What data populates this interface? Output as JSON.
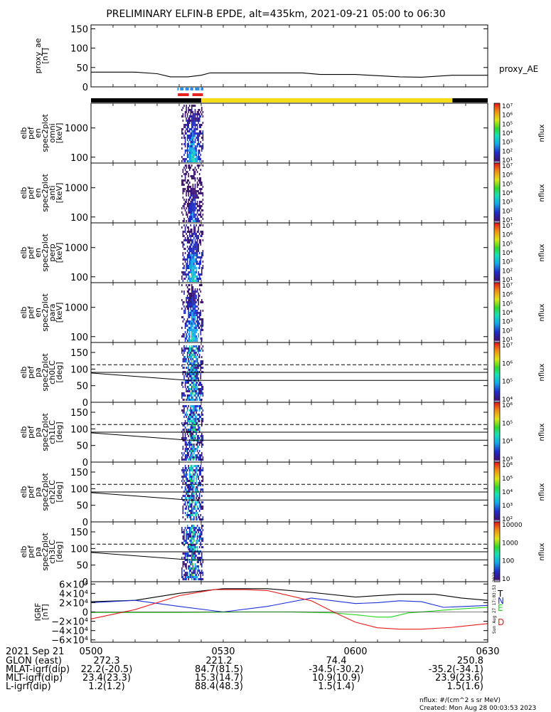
{
  "title": "PRELIMINARY ELFIN-B EPDE, alt=435km, 2021-09-21 05:00 to 06:30",
  "colors": {
    "axes": "#000000",
    "red_bar": "#e8231f",
    "blue_bar": "#2a8ce6",
    "yellow_bar": "#f5dc14",
    "trace_T": "#000000",
    "trace_N": "#1b2fd6",
    "trace_E": "#22d41a",
    "trace_D": "#e81c1c"
  },
  "chart_data": [
    {
      "type": "line",
      "id": "proxy_ae",
      "ylabel": [
        "proxy_ae",
        "[nT]"
      ],
      "yticks": [
        "150",
        "100",
        "50",
        "0"
      ],
      "ylim": [
        0,
        160
      ],
      "legend": "proxy_AE",
      "x_minutes": [
        0,
        10,
        15,
        18,
        22,
        25,
        27,
        35,
        48,
        52,
        60,
        70,
        75,
        82,
        88,
        90
      ],
      "values": [
        38,
        38,
        34,
        26,
        26,
        30,
        36,
        36,
        36,
        32,
        32,
        26,
        25,
        30,
        30,
        30
      ]
    },
    {
      "type": "heatmap",
      "id": "spec_omni",
      "ylabel": [
        "elb",
        "pef",
        "en",
        "spec2plot",
        "omni",
        "[keV]"
      ],
      "yticks": [
        "1000",
        "100"
      ],
      "ylim": [
        63,
        7000
      ],
      "colorbar_label": "nflux",
      "colorbar_ticks": [
        "10⁷",
        "10⁶",
        "10⁵",
        "10⁴",
        "10³",
        "10²",
        "10¹"
      ]
    },
    {
      "type": "heatmap",
      "id": "spec_anti",
      "ylabel": [
        "elb",
        "pef",
        "en",
        "spec2plot",
        "anti",
        "[keV]"
      ],
      "yticks": [
        "1000",
        "100"
      ],
      "ylim": [
        63,
        7000
      ],
      "colorbar_label": "nflux",
      "colorbar_ticks": [
        "10⁷",
        "10⁶",
        "10⁵",
        "10⁴",
        "10³",
        "10²",
        "10¹"
      ]
    },
    {
      "type": "heatmap",
      "id": "spec_perp",
      "ylabel": [
        "elb",
        "pef",
        "en",
        "spec2plot",
        "perp",
        "[keV]"
      ],
      "yticks": [
        "1000",
        "100"
      ],
      "ylim": [
        63,
        7000
      ],
      "colorbar_label": "nflux",
      "colorbar_ticks": [
        "10⁷",
        "10⁶",
        "10⁵",
        "10⁴",
        "10³",
        "10²",
        "10¹"
      ]
    },
    {
      "type": "heatmap",
      "id": "spec_para",
      "ylabel": [
        "elb",
        "pef",
        "en",
        "spec2plot",
        "para",
        "[keV]"
      ],
      "yticks": [
        "1000",
        "100"
      ],
      "ylim": [
        63,
        7000
      ],
      "colorbar_label": "nflux",
      "colorbar_ticks": [
        "10⁷",
        "10⁶",
        "10⁵",
        "10⁴",
        "10³",
        "10²",
        "10¹"
      ]
    },
    {
      "type": "heatmap",
      "id": "pa_ch0",
      "ylabel": [
        "elb",
        "pef",
        "pa",
        "spec2plot",
        "ch0LC",
        "[deg]"
      ],
      "yticks": [
        "150",
        "100",
        "50",
        "0"
      ],
      "ylim": [
        0,
        180
      ],
      "colorbar_label": "nflux",
      "colorbar_ticks": [
        "10⁷",
        "10⁶",
        "10⁵",
        "10⁴"
      ]
    },
    {
      "type": "heatmap",
      "id": "pa_ch1",
      "ylabel": [
        "elb",
        "pef",
        "pa",
        "spec2plot",
        "ch1LC",
        "[deg]"
      ],
      "yticks": [
        "150",
        "100",
        "50",
        "0"
      ],
      "ylim": [
        0,
        180
      ],
      "colorbar_label": "nflux",
      "colorbar_ticks": [
        "10⁶",
        "10⁵",
        "10⁴",
        "10³"
      ]
    },
    {
      "type": "heatmap",
      "id": "pa_ch2",
      "ylabel": [
        "elb",
        "pef",
        "pa",
        "spec2plot",
        "ch2LC",
        "[deg]"
      ],
      "yticks": [
        "150",
        "100",
        "50",
        "0"
      ],
      "ylim": [
        0,
        180
      ],
      "colorbar_label": "nflux",
      "colorbar_ticks": [
        "10⁶",
        "10⁵",
        "10⁴",
        "10³",
        "10²"
      ]
    },
    {
      "type": "heatmap",
      "id": "pa_ch3",
      "ylabel": [
        "elb",
        "pef",
        "pa",
        "spec2plot",
        "ch3LC",
        "[deg]"
      ],
      "yticks": [
        "150",
        "100",
        "50",
        "0"
      ],
      "ylim": [
        0,
        180
      ],
      "colorbar_label": "nflux",
      "colorbar_ticks": [
        "10000",
        "1000",
        "100",
        "10"
      ]
    },
    {
      "type": "line",
      "id": "igrf",
      "ylabel": [
        "IGRF",
        "[nT]"
      ],
      "yticks": [
        "6×10⁴",
        "4×10⁴",
        "2×10⁴",
        "0",
        "−2×10⁴",
        "−4×10⁴",
        "−6×10⁴"
      ],
      "ylim": [
        -65000,
        65000
      ],
      "series": [
        {
          "name": "T",
          "x": [
            0,
            10,
            20,
            30,
            40,
            50,
            60,
            65,
            70,
            78,
            84,
            90
          ],
          "values": [
            22000,
            25000,
            40000,
            50000,
            50000,
            42000,
            32000,
            35000,
            38000,
            38000,
            30000,
            25000
          ]
        },
        {
          "name": "N",
          "x": [
            0,
            10,
            20,
            30,
            40,
            50,
            60,
            65,
            70,
            75,
            80,
            85,
            90
          ],
          "values": [
            20000,
            25000,
            12000,
            0,
            12000,
            30000,
            18000,
            20000,
            24000,
            22000,
            10000,
            12000,
            14000
          ]
        },
        {
          "name": "E",
          "x": [
            0,
            20,
            35,
            45,
            55,
            60,
            65,
            68,
            72,
            75,
            80,
            86,
            90
          ],
          "values": [
            -1000,
            -1000,
            0,
            0,
            -2000,
            -6000,
            -11000,
            -11000,
            -2000,
            0,
            4000,
            8000,
            10000
          ]
        },
        {
          "name": "D",
          "x": [
            0,
            10,
            20,
            28,
            35,
            40,
            50,
            55,
            60,
            65,
            70,
            75,
            82,
            90
          ],
          "values": [
            -15000,
            5000,
            35000,
            48000,
            48000,
            46000,
            24000,
            0,
            -22000,
            -34000,
            -37000,
            -37000,
            -33000,
            -25000
          ]
        }
      ]
    }
  ],
  "xaxis": {
    "tick_labels": [
      "0500",
      "0530",
      "0600",
      "0630"
    ],
    "tick_minutes": [
      0,
      30,
      60,
      90
    ],
    "range_minutes": [
      0,
      90
    ]
  },
  "ephemeris": {
    "date_label": "2021 Sep 21",
    "rows": [
      {
        "label": "GLON (east)",
        "values": [
          "272.3",
          "221.2",
          "74.4",
          "250.8"
        ]
      },
      {
        "label": "MLAT-igrf(dip)",
        "values": [
          "22.2(-20.5)",
          "84.7(81.5)",
          "-34.5(-30.2)",
          "-35.2(-34.1)"
        ]
      },
      {
        "label": "MLT-igrf(dip)",
        "values": [
          "23.4(23.3)",
          "15.3(14.7)",
          "10.9(10.9)",
          "23.9(23.6)"
        ]
      },
      {
        "label": "L-igrf(dip)",
        "values": [
          "1.2(1.2)",
          "88.4(48.3)",
          "1.5(1.4)",
          "1.5(1.6)"
        ]
      }
    ]
  },
  "footer": {
    "units": "nflux: #/(cm^2 s sr MeV)",
    "created": "Created: Mon Aug 28 00:03:53 2023"
  },
  "side_stamp": "Sun Aug 27 17:03:53 2023"
}
